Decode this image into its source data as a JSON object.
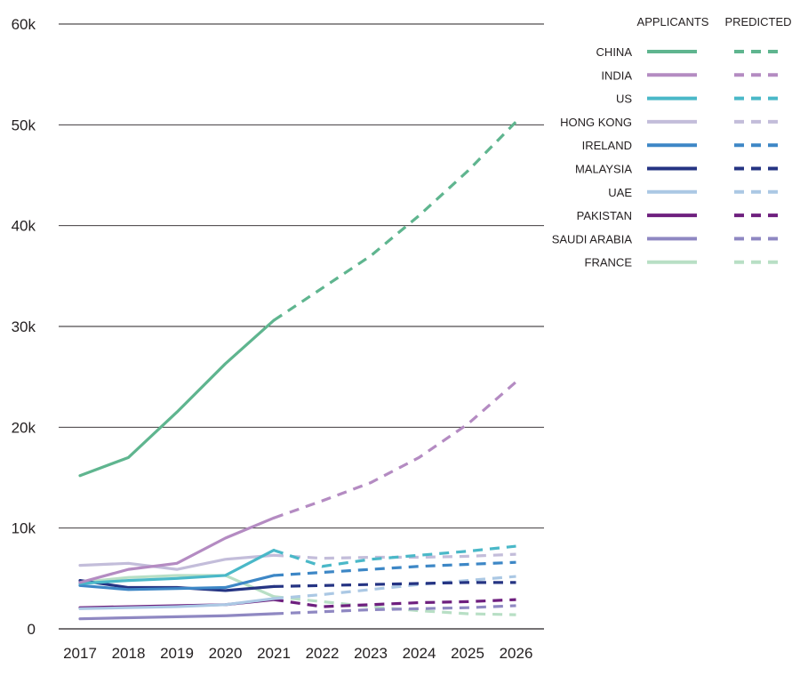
{
  "chart_data": {
    "type": "line",
    "title": "",
    "xlabel": "",
    "ylabel": "",
    "x": [
      "2017",
      "2018",
      "2019",
      "2020",
      "2021",
      "2022",
      "2023",
      "2024",
      "2025",
      "2026"
    ],
    "ylim": [
      0,
      60000
    ],
    "y_ticks": [
      {
        "value": 0,
        "label": "0"
      },
      {
        "value": 10000,
        "label": "10k"
      },
      {
        "value": 20000,
        "label": "20k"
      },
      {
        "value": 30000,
        "label": "30k"
      },
      {
        "value": 40000,
        "label": "40k"
      },
      {
        "value": 50000,
        "label": "50k"
      },
      {
        "value": 60000,
        "label": "60k"
      }
    ],
    "grid": true,
    "legend_position": "top-right",
    "legend_headers": {
      "actual": "APPLICANTS",
      "predicted": "PREDICTED"
    },
    "actual_years": [
      "2017",
      "2018",
      "2019",
      "2020",
      "2021"
    ],
    "predicted_years": [
      "2021",
      "2022",
      "2023",
      "2024",
      "2025",
      "2026"
    ],
    "series": [
      {
        "name": "CHINA",
        "color": "#5fb58f",
        "actual": [
          15200,
          17000,
          21500,
          26300,
          30600
        ],
        "predicted": [
          30600,
          33800,
          37000,
          41000,
          45400,
          50300
        ]
      },
      {
        "name": "INDIA",
        "color": "#b48bc2",
        "actual": [
          4600,
          5900,
          6500,
          9000,
          11000
        ],
        "predicted": [
          11000,
          12700,
          14500,
          17000,
          20300,
          24500
        ]
      },
      {
        "name": "US",
        "color": "#4ab8c8",
        "actual": [
          4500,
          4800,
          5000,
          5300,
          7800
        ],
        "predicted": [
          7800,
          6200,
          6900,
          7300,
          7700,
          8200
        ]
      },
      {
        "name": "HONG KONG",
        "color": "#c3bdda",
        "actual": [
          6300,
          6500,
          5900,
          6900,
          7300
        ],
        "predicted": [
          7300,
          7000,
          7100,
          7100,
          7200,
          7400
        ]
      },
      {
        "name": "IRELAND",
        "color": "#3d87c6",
        "actual": [
          4300,
          3900,
          4000,
          4100,
          5300
        ],
        "predicted": [
          5300,
          5600,
          5900,
          6200,
          6400,
          6600
        ]
      },
      {
        "name": "MALAYSIA",
        "color": "#253483",
        "actual": [
          4800,
          4100,
          4100,
          3800,
          4200
        ],
        "predicted": [
          4200,
          4300,
          4400,
          4500,
          4600,
          4600
        ]
      },
      {
        "name": "UAE",
        "color": "#abc8e4",
        "actual": [
          2000,
          2100,
          2200,
          2400,
          3000
        ],
        "predicted": [
          3000,
          3400,
          3900,
          4400,
          4800,
          5200
        ]
      },
      {
        "name": "PAKISTAN",
        "color": "#6e1f7e",
        "actual": [
          2100,
          2200,
          2300,
          2400,
          2900
        ],
        "predicted": [
          2900,
          2200,
          2400,
          2600,
          2700,
          2900
        ]
      },
      {
        "name": "SAUDI ARABIA",
        "color": "#8f88c2",
        "actual": [
          1000,
          1100,
          1200,
          1300,
          1500
        ],
        "predicted": [
          1500,
          1700,
          1900,
          2000,
          2100,
          2300
        ]
      },
      {
        "name": "FRANCE",
        "color": "#b8dfc5",
        "actual": [
          4600,
          5100,
          5300,
          5300,
          3200
        ],
        "predicted": [
          3200,
          2700,
          2200,
          1800,
          1500,
          1400
        ]
      }
    ]
  }
}
